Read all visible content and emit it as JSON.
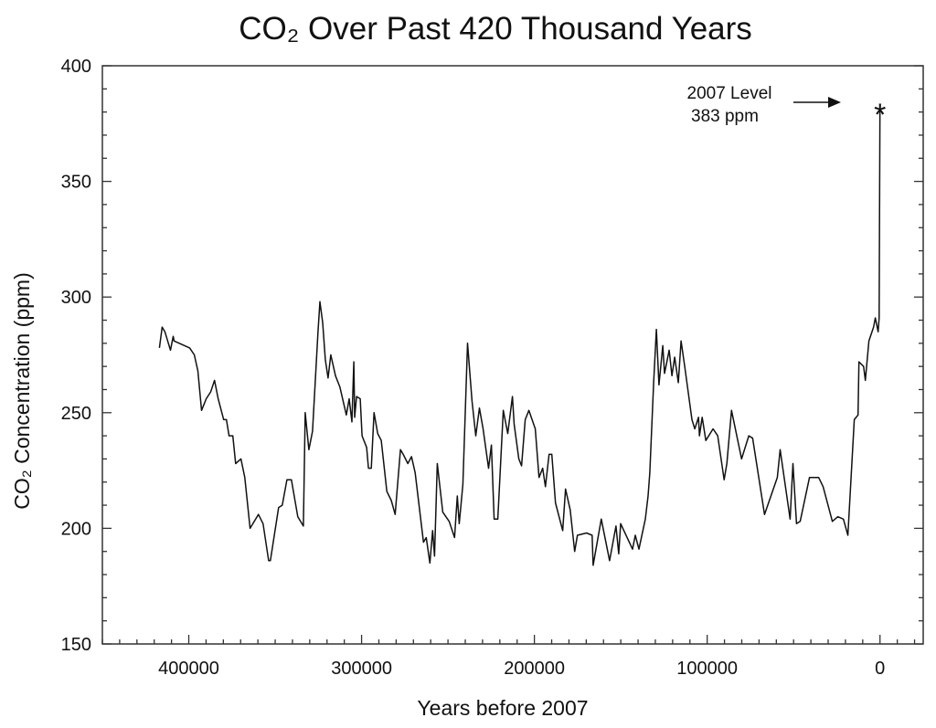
{
  "chart_data": {
    "type": "line",
    "title": "CO₂ Over Past 420 Thousand Years",
    "xlabel": "Years before 2007",
    "ylabel": "CO₂ Concentration (ppm)",
    "xlim": [
      450000,
      -25000
    ],
    "ylim": [
      150,
      400
    ],
    "x_reversed": true,
    "x_ticks": [
      400000,
      300000,
      200000,
      100000,
      0
    ],
    "x_tick_labels": [
      "400000",
      "300000",
      "200000",
      "100000",
      "0"
    ],
    "x_minor_step": 10000,
    "y_ticks": [
      150,
      200,
      250,
      300,
      350,
      400
    ],
    "y_tick_labels": [
      "150",
      "200",
      "250",
      "300",
      "350",
      "400"
    ],
    "y_minor_step": 10,
    "grid": false,
    "line_color": "#111111",
    "marker_color": "#9b1b1b",
    "annotation": {
      "line1": "2007 Level",
      "line2": "383 ppm",
      "point": [
        0,
        383
      ],
      "marker": "asterisk"
    },
    "series": [
      {
        "points": [
          [
            417000,
            278
          ],
          [
            415400,
            287
          ],
          [
            413800,
            285
          ],
          [
            410600,
            277
          ],
          [
            409000,
            283
          ],
          [
            408500,
            281
          ],
          [
            399500,
            278
          ],
          [
            396800,
            275
          ],
          [
            394700,
            268
          ],
          [
            392600,
            251
          ],
          [
            389900,
            256
          ],
          [
            387300,
            259
          ],
          [
            385100,
            264
          ],
          [
            383000,
            256
          ],
          [
            379800,
            247
          ],
          [
            378200,
            247
          ],
          [
            376700,
            240
          ],
          [
            374500,
            240
          ],
          [
            372900,
            228
          ],
          [
            369800,
            230
          ],
          [
            367600,
            222
          ],
          [
            364500,
            200
          ],
          [
            359700,
            206
          ],
          [
            357000,
            202
          ],
          [
            353800,
            186
          ],
          [
            352800,
            186
          ],
          [
            348000,
            209
          ],
          [
            345900,
            210
          ],
          [
            343200,
            221
          ],
          [
            340600,
            221
          ],
          [
            336900,
            205
          ],
          [
            333700,
            201
          ],
          [
            332600,
            250
          ],
          [
            330500,
            234
          ],
          [
            328400,
            242
          ],
          [
            325200,
            285
          ],
          [
            324100,
            298
          ],
          [
            322500,
            289
          ],
          [
            321000,
            273
          ],
          [
            319400,
            265
          ],
          [
            317800,
            275
          ],
          [
            315100,
            266
          ],
          [
            312500,
            261
          ],
          [
            308800,
            249
          ],
          [
            307200,
            256
          ],
          [
            305600,
            246
          ],
          [
            304500,
            272
          ],
          [
            304000,
            248
          ],
          [
            302900,
            257
          ],
          [
            300800,
            256
          ],
          [
            299700,
            240
          ],
          [
            297100,
            235
          ],
          [
            296000,
            226
          ],
          [
            294400,
            226
          ],
          [
            292800,
            250
          ],
          [
            290700,
            241
          ],
          [
            288600,
            238
          ],
          [
            285400,
            216
          ],
          [
            282800,
            212
          ],
          [
            280600,
            206
          ],
          [
            277500,
            234
          ],
          [
            275900,
            232
          ],
          [
            273200,
            228
          ],
          [
            271100,
            231
          ],
          [
            269000,
            224
          ],
          [
            264200,
            194
          ],
          [
            262600,
            196
          ],
          [
            260500,
            185
          ],
          [
            258900,
            199
          ],
          [
            257800,
            188
          ],
          [
            256200,
            228
          ],
          [
            253000,
            207
          ],
          [
            249300,
            203
          ],
          [
            246200,
            196
          ],
          [
            244600,
            214
          ],
          [
            243500,
            202
          ],
          [
            241400,
            219
          ],
          [
            238700,
            280
          ],
          [
            236100,
            255
          ],
          [
            233900,
            240
          ],
          [
            231800,
            252
          ],
          [
            229700,
            243
          ],
          [
            226500,
            226
          ],
          [
            224900,
            236
          ],
          [
            223300,
            204
          ],
          [
            221200,
            204
          ],
          [
            218000,
            251
          ],
          [
            215400,
            241
          ],
          [
            212700,
            257
          ],
          [
            211700,
            245
          ],
          [
            209000,
            230
          ],
          [
            207400,
            227
          ],
          [
            205300,
            247
          ],
          [
            203200,
            251
          ],
          [
            199500,
            243
          ],
          [
            197300,
            222
          ],
          [
            195200,
            226
          ],
          [
            193600,
            218
          ],
          [
            191500,
            232
          ],
          [
            189900,
            232
          ],
          [
            187800,
            211
          ],
          [
            183600,
            199
          ],
          [
            182000,
            217
          ],
          [
            179300,
            208
          ],
          [
            176700,
            190
          ],
          [
            175100,
            197
          ],
          [
            169800,
            198
          ],
          [
            166600,
            197
          ],
          [
            166000,
            184
          ],
          [
            161300,
            204
          ],
          [
            156500,
            186
          ],
          [
            152800,
            201
          ],
          [
            151200,
            189
          ],
          [
            150100,
            202
          ],
          [
            143200,
            191
          ],
          [
            141600,
            197
          ],
          [
            139500,
            191
          ],
          [
            135800,
            204
          ],
          [
            134200,
            214
          ],
          [
            133200,
            224
          ],
          [
            131000,
            263
          ],
          [
            129400,
            286
          ],
          [
            127900,
            262
          ],
          [
            125700,
            279
          ],
          [
            124700,
            267
          ],
          [
            122000,
            277
          ],
          [
            120400,
            266
          ],
          [
            118800,
            274
          ],
          [
            116700,
            263
          ],
          [
            115100,
            281
          ],
          [
            113000,
            270
          ],
          [
            108800,
            247
          ],
          [
            107200,
            243
          ],
          [
            105000,
            248
          ],
          [
            104500,
            240
          ],
          [
            102900,
            248
          ],
          [
            100800,
            238
          ],
          [
            96600,
            243
          ],
          [
            93900,
            240
          ],
          [
            90200,
            221
          ],
          [
            88600,
            228
          ],
          [
            85900,
            251
          ],
          [
            80100,
            230
          ],
          [
            75900,
            240
          ],
          [
            73700,
            239
          ],
          [
            66800,
            206
          ],
          [
            59400,
            222
          ],
          [
            57800,
            234
          ],
          [
            52000,
            204
          ],
          [
            50400,
            228
          ],
          [
            48300,
            202
          ],
          [
            46200,
            203
          ],
          [
            40800,
            222
          ],
          [
            35500,
            222
          ],
          [
            32900,
            218
          ],
          [
            27600,
            203
          ],
          [
            24400,
            205
          ],
          [
            21200,
            204
          ],
          [
            18600,
            197
          ],
          [
            14900,
            247
          ],
          [
            12700,
            249
          ],
          [
            12200,
            272
          ],
          [
            9500,
            270
          ],
          [
            8500,
            264
          ],
          [
            6400,
            281
          ],
          [
            3700,
            287
          ],
          [
            2700,
            291
          ],
          [
            1100,
            285
          ],
          [
            500,
            291
          ],
          [
            0,
            383
          ]
        ]
      }
    ]
  }
}
